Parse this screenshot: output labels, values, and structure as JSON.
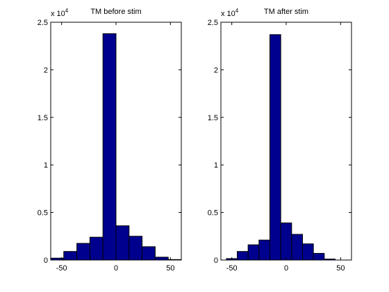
{
  "figure": {
    "background": "#ffffff"
  },
  "chart_data": [
    {
      "type": "bar",
      "title": "TM before stim",
      "xlabel": "",
      "ylabel": "",
      "y_scale_label": {
        "base": "x 10",
        "exponent": "4"
      },
      "xlim": [
        -60,
        60
      ],
      "ylim": [
        0,
        25000
      ],
      "xticks": [
        -50,
        0,
        50
      ],
      "yticks": [
        0,
        5000,
        10000,
        15000,
        20000,
        25000
      ],
      "ytick_labels": [
        "0",
        "0.5",
        "1",
        "1.5",
        "2",
        "2.5"
      ],
      "grid": false,
      "bar_color": "#00008f",
      "bins": [
        {
          "x0": -60,
          "x1": -48,
          "value": 200
        },
        {
          "x0": -48,
          "x1": -36,
          "value": 900
        },
        {
          "x0": -36,
          "x1": -24,
          "value": 1750
        },
        {
          "x0": -24,
          "x1": -12,
          "value": 2400
        },
        {
          "x0": -12,
          "x1": 0,
          "value": 23800
        },
        {
          "x0": 0,
          "x1": 12,
          "value": 3600
        },
        {
          "x0": 12,
          "x1": 24,
          "value": 2500
        },
        {
          "x0": 24,
          "x1": 36,
          "value": 1400
        },
        {
          "x0": 36,
          "x1": 48,
          "value": 300
        },
        {
          "x0": 48,
          "x1": 60,
          "value": 50
        }
      ]
    },
    {
      "type": "bar",
      "title": "TM after stim",
      "xlabel": "",
      "ylabel": "",
      "y_scale_label": {
        "base": "x 10",
        "exponent": "4"
      },
      "xlim": [
        -60,
        60
      ],
      "ylim": [
        0,
        25000
      ],
      "xticks": [
        -50,
        0,
        50
      ],
      "yticks": [
        0,
        5000,
        10000,
        15000,
        20000,
        25000
      ],
      "ytick_labels": [
        "0",
        "0.5",
        "1",
        "1.5",
        "2",
        "2.5"
      ],
      "grid": false,
      "bar_color": "#00008f",
      "bins": [
        {
          "x0": -55,
          "x1": -45,
          "value": 150
        },
        {
          "x0": -45,
          "x1": -35,
          "value": 900
        },
        {
          "x0": -35,
          "x1": -25,
          "value": 1600
        },
        {
          "x0": -25,
          "x1": -15,
          "value": 2100
        },
        {
          "x0": -15,
          "x1": -5,
          "value": 23700
        },
        {
          "x0": -5,
          "x1": 5,
          "value": 3900
        },
        {
          "x0": 5,
          "x1": 15,
          "value": 2700
        },
        {
          "x0": 15,
          "x1": 25,
          "value": 1700
        },
        {
          "x0": 25,
          "x1": 35,
          "value": 700
        },
        {
          "x0": 35,
          "x1": 45,
          "value": 100
        }
      ]
    }
  ]
}
